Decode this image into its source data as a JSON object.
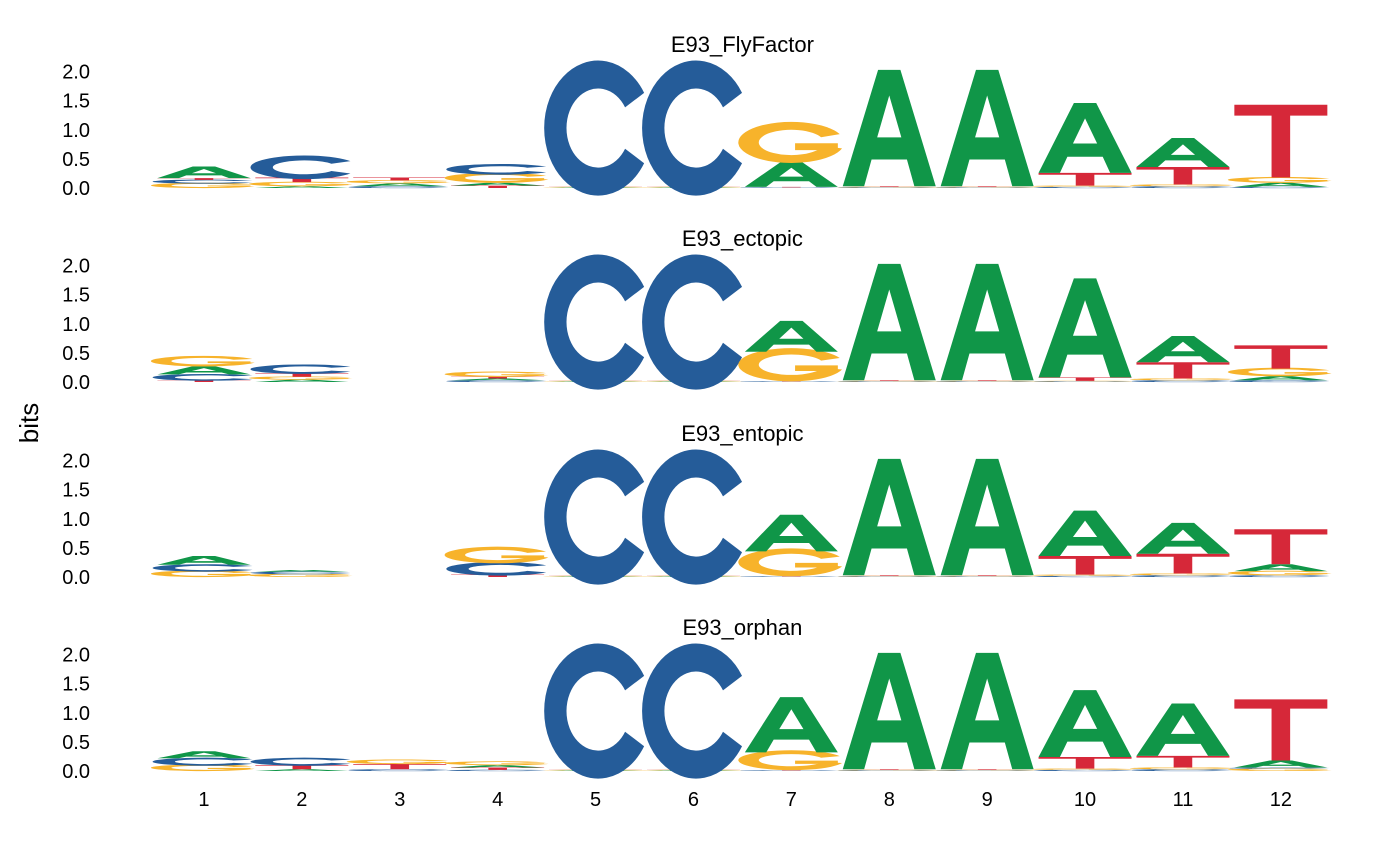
{
  "chart_data": {
    "type": "sequence_logo",
    "ylabel": "bits",
    "ylim": [
      0,
      2
    ],
    "yticks": [
      "0.0",
      "0.5",
      "1.0",
      "1.5",
      "2.0"
    ],
    "positions": [
      "1",
      "2",
      "3",
      "4",
      "5",
      "6",
      "7",
      "8",
      "9",
      "10",
      "11",
      "12"
    ],
    "colors": {
      "A": "#109648",
      "C": "#255C99",
      "G": "#F7B32B",
      "T": "#D62839"
    },
    "panels": [
      {
        "title": "E93_FlyFactor",
        "stacks": [
          [
            [
              "G",
              0.08
            ],
            [
              "C",
              0.06
            ],
            [
              "T",
              0.03
            ],
            [
              "A",
              0.2
            ]
          ],
          [
            [
              "A",
              0.03
            ],
            [
              "G",
              0.07
            ],
            [
              "T",
              0.08
            ],
            [
              "C",
              0.35
            ]
          ],
          [
            [
              "C",
              0.03
            ],
            [
              "A",
              0.05
            ],
            [
              "G",
              0.05
            ],
            [
              "T",
              0.05
            ]
          ],
          [
            [
              "T",
              0.04
            ],
            [
              "A",
              0.05
            ],
            [
              "G",
              0.15
            ],
            [
              "C",
              0.16
            ]
          ],
          [
            [
              "A",
              0.01
            ],
            [
              "G",
              0.01
            ],
            [
              "T",
              0.01
            ],
            [
              "C",
              2.0
            ]
          ],
          [
            [
              "A",
              0.01
            ],
            [
              "G",
              0.01
            ],
            [
              "T",
              0.01
            ],
            [
              "C",
              2.0
            ]
          ],
          [
            [
              "C",
              0.01
            ],
            [
              "T",
              0.01
            ],
            [
              "A",
              0.42
            ],
            [
              "G",
              0.62
            ]
          ],
          [
            [
              "C",
              0.01
            ],
            [
              "G",
              0.01
            ],
            [
              "T",
              0.01
            ],
            [
              "A",
              2.0
            ]
          ],
          [
            [
              "C",
              0.01
            ],
            [
              "G",
              0.01
            ],
            [
              "T",
              0.01
            ],
            [
              "A",
              2.0
            ]
          ],
          [
            [
              "C",
              0.02
            ],
            [
              "G",
              0.02
            ],
            [
              "T",
              0.22
            ],
            [
              "A",
              1.2
            ]
          ],
          [
            [
              "C",
              0.03
            ],
            [
              "G",
              0.03
            ],
            [
              "T",
              0.3
            ],
            [
              "A",
              0.5
            ]
          ],
          [
            [
              "C",
              0.02
            ],
            [
              "A",
              0.07
            ],
            [
              "G",
              0.09
            ],
            [
              "T",
              1.25
            ]
          ]
        ]
      },
      {
        "title": "E93_ectopic",
        "stacks": [
          [
            [
              "T",
              0.03
            ],
            [
              "C",
              0.1
            ],
            [
              "A",
              0.14
            ],
            [
              "G",
              0.16
            ]
          ],
          [
            [
              "A",
              0.04
            ],
            [
              "G",
              0.05
            ],
            [
              "T",
              0.06
            ],
            [
              "C",
              0.14
            ]
          ],
          [],
          [
            [
              "C",
              0.03
            ],
            [
              "A",
              0.03
            ],
            [
              "T",
              0.03
            ],
            [
              "G",
              0.08
            ]
          ],
          [
            [
              "A",
              0.01
            ],
            [
              "G",
              0.01
            ],
            [
              "T",
              0.01
            ],
            [
              "C",
              2.0
            ]
          ],
          [
            [
              "A",
              0.01
            ],
            [
              "G",
              0.01
            ],
            [
              "T",
              0.01
            ],
            [
              "C",
              2.0
            ]
          ],
          [
            [
              "C",
              0.01
            ],
            [
              "T",
              0.01
            ],
            [
              "G",
              0.5
            ],
            [
              "A",
              0.53
            ]
          ],
          [
            [
              "C",
              0.01
            ],
            [
              "G",
              0.01
            ],
            [
              "T",
              0.01
            ],
            [
              "A",
              2.0
            ]
          ],
          [
            [
              "C",
              0.01
            ],
            [
              "G",
              0.01
            ],
            [
              "T",
              0.01
            ],
            [
              "A",
              2.0
            ]
          ],
          [
            [
              "C",
              0.01
            ],
            [
              "G",
              0.01
            ],
            [
              "T",
              0.06
            ],
            [
              "A",
              1.7
            ]
          ],
          [
            [
              "C",
              0.03
            ],
            [
              "G",
              0.03
            ],
            [
              "T",
              0.28
            ],
            [
              "A",
              0.45
            ]
          ],
          [
            [
              "C",
              0.03
            ],
            [
              "A",
              0.07
            ],
            [
              "G",
              0.13
            ],
            [
              "T",
              0.4
            ]
          ]
        ]
      },
      {
        "title": "E93_entopic",
        "stacks": [
          [
            [
              "G",
              0.1
            ],
            [
              "C",
              0.11
            ],
            [
              "A",
              0.15
            ]
          ],
          [
            [
              "G",
              0.05
            ],
            [
              "C",
              0.04
            ],
            [
              "A",
              0.03
            ]
          ],
          [],
          [
            [
              "T",
              0.04
            ],
            [
              "C",
              0.2
            ],
            [
              "G",
              0.25
            ]
          ],
          [
            [
              "A",
              0.01
            ],
            [
              "G",
              0.01
            ],
            [
              "T",
              0.01
            ],
            [
              "C",
              2.0
            ]
          ],
          [
            [
              "A",
              0.01
            ],
            [
              "G",
              0.01
            ],
            [
              "T",
              0.01
            ],
            [
              "C",
              2.0
            ]
          ],
          [
            [
              "C",
              0.01
            ],
            [
              "T",
              0.01
            ],
            [
              "G",
              0.42
            ],
            [
              "A",
              0.63
            ]
          ],
          [
            [
              "C",
              0.01
            ],
            [
              "G",
              0.01
            ],
            [
              "T",
              0.01
            ],
            [
              "A",
              2.0
            ]
          ],
          [
            [
              "C",
              0.01
            ],
            [
              "G",
              0.01
            ],
            [
              "T",
              0.01
            ],
            [
              "A",
              2.0
            ]
          ],
          [
            [
              "C",
              0.02
            ],
            [
              "G",
              0.02
            ],
            [
              "T",
              0.32
            ],
            [
              "A",
              0.78
            ]
          ],
          [
            [
              "C",
              0.03
            ],
            [
              "G",
              0.03
            ],
            [
              "T",
              0.34
            ],
            [
              "A",
              0.53
            ]
          ],
          [
            [
              "C",
              0.03
            ],
            [
              "G",
              0.07
            ],
            [
              "A",
              0.12
            ],
            [
              "T",
              0.6
            ]
          ]
        ]
      },
      {
        "title": "E93_orphan",
        "stacks": [
          [
            [
              "G",
              0.1
            ],
            [
              "C",
              0.12
            ],
            [
              "A",
              0.12
            ]
          ],
          [
            [
              "A",
              0.03
            ],
            [
              "T",
              0.07
            ],
            [
              "C",
              0.12
            ]
          ],
          [
            [
              "C",
              0.03
            ],
            [
              "T",
              0.09
            ],
            [
              "G",
              0.07
            ]
          ],
          [
            [
              "C",
              0.02
            ],
            [
              "T",
              0.04
            ],
            [
              "A",
              0.04
            ],
            [
              "G",
              0.06
            ]
          ],
          [
            [
              "A",
              0.01
            ],
            [
              "G",
              0.01
            ],
            [
              "T",
              0.01
            ],
            [
              "C",
              2.0
            ]
          ],
          [
            [
              "A",
              0.01
            ],
            [
              "G",
              0.01
            ],
            [
              "T",
              0.01
            ],
            [
              "C",
              2.0
            ]
          ],
          [
            [
              "C",
              0.01
            ],
            [
              "T",
              0.01
            ],
            [
              "G",
              0.3
            ],
            [
              "A",
              0.95
            ]
          ],
          [
            [
              "C",
              0.01
            ],
            [
              "G",
              0.01
            ],
            [
              "T",
              0.01
            ],
            [
              "A",
              2.0
            ]
          ],
          [
            [
              "C",
              0.01
            ],
            [
              "G",
              0.01
            ],
            [
              "T",
              0.01
            ],
            [
              "A",
              2.0
            ]
          ],
          [
            [
              "C",
              0.02
            ],
            [
              "G",
              0.02
            ],
            [
              "T",
              0.2
            ],
            [
              "A",
              1.15
            ]
          ],
          [
            [
              "C",
              0.03
            ],
            [
              "G",
              0.03
            ],
            [
              "T",
              0.2
            ],
            [
              "A",
              0.9
            ]
          ],
          [
            [
              "G",
              0.04
            ],
            [
              "C",
              0.02
            ],
            [
              "A",
              0.12
            ],
            [
              "T",
              1.05
            ]
          ]
        ]
      }
    ]
  }
}
